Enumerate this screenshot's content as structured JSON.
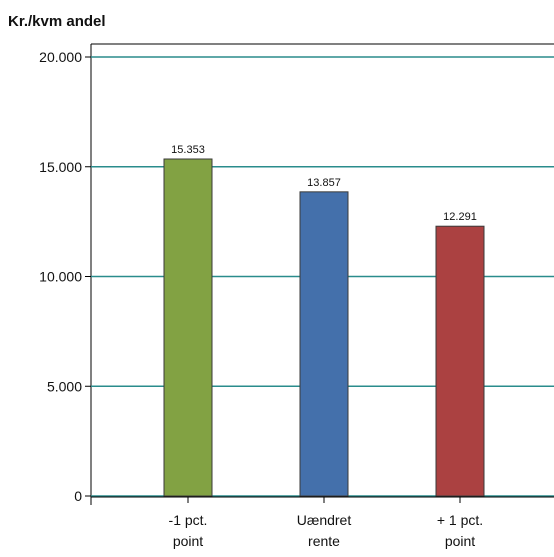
{
  "chart_data": {
    "type": "bar",
    "ylabel": "Kr./kvm andel",
    "categories": [
      [
        "-1 pct.",
        "point"
      ],
      [
        "Uændret",
        "rente"
      ],
      [
        "+ 1 pct.",
        "point"
      ]
    ],
    "values": [
      15353,
      13857,
      12291
    ],
    "value_labels": [
      "15.353",
      "13.857",
      "12.291"
    ],
    "colors": [
      "#82a243",
      "#4470ab",
      "#ab4141"
    ],
    "ylim": [
      0,
      20000
    ],
    "yticks": [
      0,
      5000,
      10000,
      15000,
      20000
    ],
    "ytick_labels": [
      "0",
      "5.000",
      "10.000",
      "15.000",
      "20.000"
    ],
    "gridline_color": "#2a8c8c",
    "grid": true,
    "legend": "none"
  }
}
